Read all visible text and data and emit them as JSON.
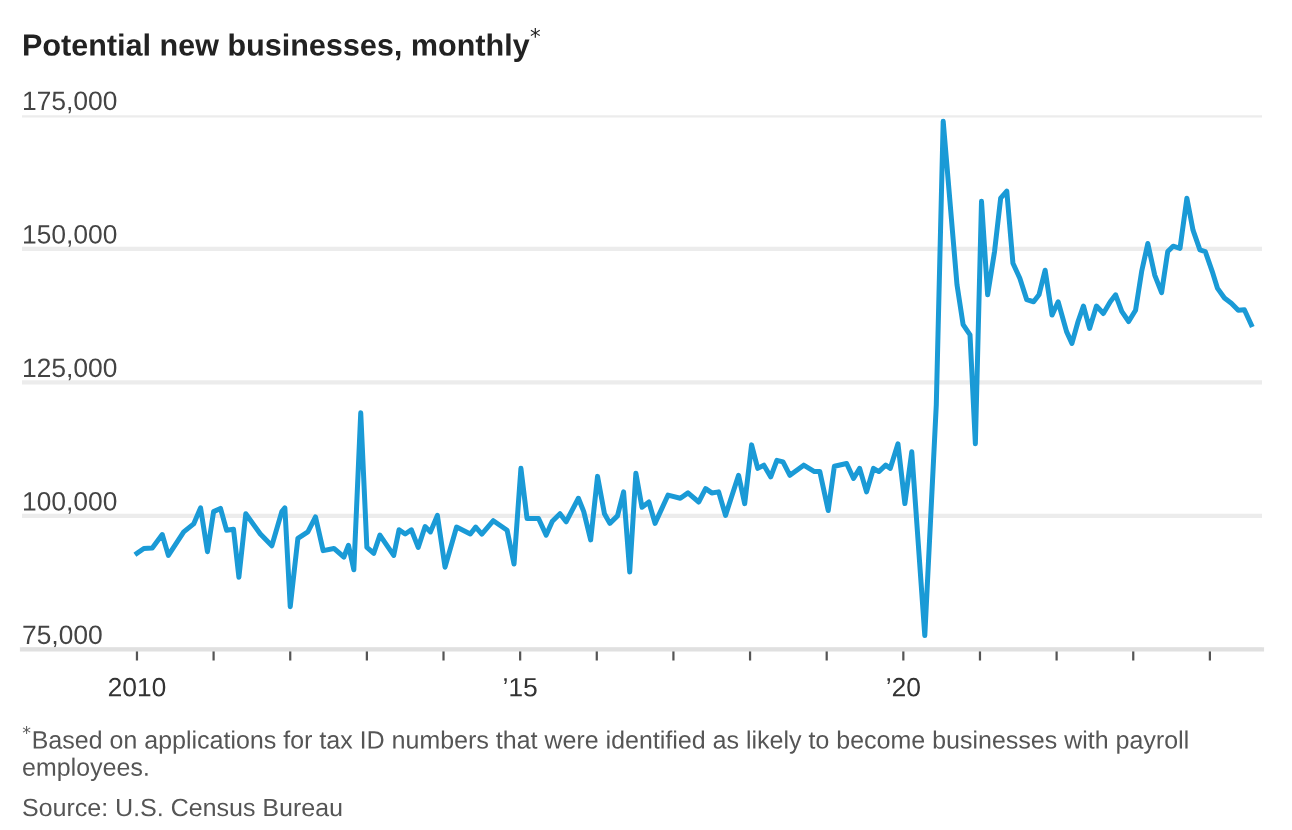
{
  "chart_data": {
    "type": "line",
    "title": "Potential new businesses, monthly$^{*}$",
    "annotations": [
      "$^{*}$Based on applications for tax ID numbers that were identified as likely to become businesses with payroll employees.",
      "Source: U.S. Census Bureau"
    ],
    "x": [
      2010.0,
      2010.09,
      2010.2,
      2010.33,
      2010.41,
      2010.61,
      2010.74,
      2010.83,
      2010.92,
      2011.0,
      2011.09,
      2011.17,
      2011.26,
      2011.33,
      2011.42,
      2011.61,
      2011.76,
      2011.89,
      2011.93,
      2012.0,
      2012.1,
      2012.23,
      2012.33,
      2012.43,
      2012.57,
      2012.7,
      2012.76,
      2012.83,
      2012.92,
      2013.0,
      2013.09,
      2013.17,
      2013.35,
      2013.42,
      2013.5,
      2013.58,
      2013.67,
      2013.76,
      2013.83,
      2013.92,
      2014.02,
      2014.17,
      2014.35,
      2014.42,
      2014.5,
      2014.65,
      2014.83,
      2014.92,
      2015.01,
      2015.09,
      2015.24,
      2015.34,
      2015.42,
      2015.52,
      2015.6,
      2015.76,
      2015.83,
      2015.92,
      2016.01,
      2016.1,
      2016.17,
      2016.27,
      2016.35,
      2016.43,
      2016.51,
      2016.59,
      2016.68,
      2016.76,
      2016.93,
      2017.09,
      2017.19,
      2017.33,
      2017.42,
      2017.5,
      2017.59,
      2017.68,
      2017.85,
      2017.93,
      2018.02,
      2018.1,
      2018.18,
      2018.27,
      2018.35,
      2018.43,
      2018.52,
      2018.7,
      2018.84,
      2018.91,
      2019.02,
      2019.1,
      2019.26,
      2019.35,
      2019.43,
      2019.52,
      2019.61,
      2019.68,
      2019.77,
      2019.83,
      2019.93,
      2020.02,
      2020.11,
      2020.28,
      2020.43,
      2020.52,
      2020.7,
      2020.78,
      2020.87,
      2020.94,
      2021.02,
      2021.1,
      2021.19,
      2021.27,
      2021.35,
      2021.43,
      2021.52,
      2021.61,
      2021.7,
      2021.77,
      2021.85,
      2021.94,
      2022.02,
      2022.13,
      2022.2,
      2022.28,
      2022.35,
      2022.43,
      2022.52,
      2022.61,
      2022.7,
      2022.77,
      2022.85,
      2022.94,
      2023.03,
      2023.11,
      2023.19,
      2023.28,
      2023.37,
      2023.45,
      2023.52,
      2023.61,
      2023.7,
      2023.78,
      2023.87,
      2023.94,
      2024.03,
      2024.1,
      2024.19,
      2024.28,
      2024.37,
      2024.45,
      2024.54
    ],
    "series": [
      {
        "color": "#1a9ad6",
        "values": [
          93000,
          93900,
          94000,
          96500,
          92600,
          97000,
          98500,
          101500,
          93300,
          100800,
          101400,
          97300,
          97500,
          88500,
          100400,
          96600,
          94400,
          100800,
          101500,
          83000,
          95800,
          97000,
          99800,
          93500,
          93900,
          92300,
          94500,
          89900,
          119300,
          94100,
          93000,
          96400,
          92600,
          97400,
          96600,
          97400,
          94100,
          98000,
          97000,
          100100,
          90400,
          97900,
          96600,
          97900,
          96600,
          99100,
          97300,
          91000,
          108900,
          99500,
          99500,
          96400,
          99000,
          100400,
          98900,
          103300,
          100800,
          95500,
          107400,
          100400,
          98600,
          100000,
          104500,
          89500,
          108000,
          101600,
          102600,
          98600,
          103900,
          103300,
          104300,
          102600,
          105100,
          104300,
          104500,
          100100,
          107600,
          102300,
          113300,
          108900,
          109500,
          107300,
          110400,
          110100,
          107600,
          109500,
          108300,
          108300,
          101000,
          109300,
          109800,
          107000,
          108900,
          104500,
          108900,
          108300,
          109500,
          108900,
          113500,
          102300,
          112000,
          77600,
          120800,
          173900,
          143300,
          135800,
          133900,
          113500,
          158900,
          141400,
          149500,
          159500,
          160800,
          147300,
          144500,
          140500,
          140100,
          141400,
          146000,
          137600,
          140100,
          134500,
          132300,
          136400,
          139300,
          135100,
          139300,
          137900,
          140100,
          141400,
          138300,
          136400,
          138500,
          145800,
          151000,
          145100,
          141800,
          149500,
          150500,
          150100,
          159500,
          153500,
          149800,
          149500,
          145800,
          142600,
          140800,
          139800,
          138500,
          138600,
          135800
        ]
      }
    ],
    "xlim": [
      2008.5,
      2024.68
    ],
    "xticks": [
      {
        "value": 2010,
        "label": "2010"
      },
      {
        "value": 2011,
        "label": null
      },
      {
        "value": 2012,
        "label": null
      },
      {
        "value": 2013,
        "label": null
      },
      {
        "value": 2014,
        "label": null
      },
      {
        "value": 2015,
        "label": "’15"
      },
      {
        "value": 2016,
        "label": null
      },
      {
        "value": 2017,
        "label": null
      },
      {
        "value": 2018,
        "label": null
      },
      {
        "value": 2019,
        "label": null
      },
      {
        "value": 2020,
        "label": "’20"
      },
      {
        "value": 2021,
        "label": null
      },
      {
        "value": 2022,
        "label": null
      },
      {
        "value": 2023,
        "label": null
      },
      {
        "value": 2024,
        "label": null
      }
    ],
    "ylim": [
      75000,
      175000
    ],
    "yticks": [
      {
        "value": 75000,
        "label": "75,000"
      },
      {
        "value": 100000,
        "label": "100,000"
      },
      {
        "value": 125000,
        "label": "125,000"
      },
      {
        "value": 150000,
        "label": "150,000"
      },
      {
        "value": 175000,
        "label": "175,000"
      }
    ],
    "grid": "y"
  }
}
